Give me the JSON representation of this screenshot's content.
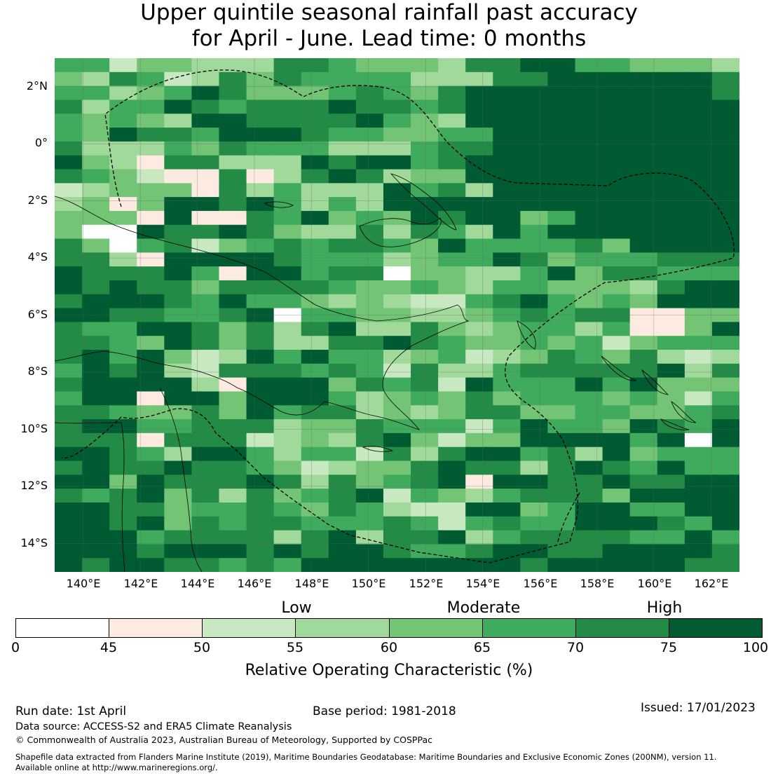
{
  "title": {
    "line1": "Upper quintile seasonal rainfall past accuracy",
    "line2": "for April - June. Lead time: 0 months"
  },
  "map": {
    "lat_range": [
      -15,
      3
    ],
    "lon_range": [
      139,
      163
    ],
    "lat_ticks": [
      "2°N",
      "0°",
      "2°S",
      "4°S",
      "6°S",
      "8°S",
      "10°S",
      "12°S",
      "14°S"
    ],
    "lat_tick_values": [
      2,
      0,
      -2,
      -4,
      -6,
      -8,
      -10,
      -12,
      -14
    ],
    "lon_ticks": [
      "140°E",
      "142°E",
      "144°E",
      "146°E",
      "148°E",
      "150°E",
      "152°E",
      "154°E",
      "156°E",
      "158°E",
      "160°E",
      "162°E"
    ],
    "lon_tick_values": [
      140,
      142,
      144,
      146,
      148,
      150,
      152,
      154,
      156,
      158,
      160,
      162
    ],
    "grid_levels": [
      "5524433366544436677554443",
      "4365236465555333667777776",
      "5534576444565467777777776",
      "6355765666766567777777777",
      "5454377666675437777777777",
      "5476657776554455777777777",
      "6333546555333566777777777",
      "7431663337677567777777777",
      "6542116136763447777777777",
      "2344416353337563777777777",
      "3414776753537777777777777",
      "4441711657454767745777777",
      "4007667643363653757777777",
      "6405624565665475555647777",
      "6631777765553455764555666",
      "7666751775660443357466555",
      "7676646666544543554443677",
      "6777657554343225675454777",
      "7766556705544334565661144",
      "6557764636733643455351147",
      "6654764633667654454524555",
      "6757423757553452346546323",
      "5767326665652633566666736",
      "6777731777465627555757444",
      "5771774777534546455545425",
      "6654464756634346644554456",
      "6775566634465552575547657",
      "6661666234367424477775707",
      "7765377535526367756374555",
      "6766766542344676636765755",
      "7747666763645671776676677",
      "6567463645672543566647777",
      "7766455654653227745775577",
      "7767465665556525655777657",
      "7775666636736673566665575",
      "7776777676776556776677776",
      "7677665657777777767777766"
    ]
  },
  "categories": {
    "low": "Low",
    "moderate": "Moderate",
    "high": "High"
  },
  "colorbar": {
    "ticks": [
      "0",
      "45",
      "50",
      "55",
      "60",
      "65",
      "70",
      "75",
      "100"
    ],
    "colors": [
      "#ffffff",
      "#fdebe2",
      "#c7e8c0",
      "#a1d99b",
      "#74c476",
      "#41ab5d",
      "#238b45",
      "#005a32"
    ],
    "label": "Relative Operating Characteristic (%)"
  },
  "footer": {
    "run_date": "Run date: 1st April",
    "base_period": "Base period: 1981-2018",
    "issued": "Issued: 17/01/2023",
    "data_source": "Data source: ACCESS-S2 and ERA5 Climate Reanalysis",
    "copyright": "© Commonwealth of Australia 2023, Australian Bureau of Meteorology, Supported by COSPPac",
    "shapefile_line1": "Shapefile data extracted from Flanders Marine Institute (2019), Maritime Boundaries Geodatabase: Maritime Boundaries and Exclusive Economic Zones (200NM), version 11.",
    "shapefile_line2": "Available online at http://www.marineregions.org/."
  }
}
